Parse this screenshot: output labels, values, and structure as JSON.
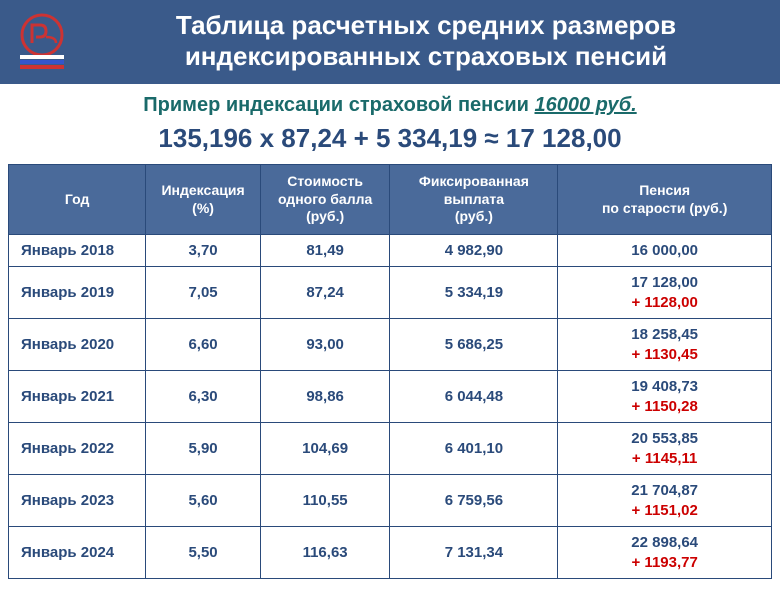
{
  "header": {
    "title_line1": "Таблица расчетных средних размеров",
    "title_line2": "индексированных страховых пенсий"
  },
  "subtitle": {
    "prefix": "Пример индексации страховой пенсии ",
    "amount": "16000 руб."
  },
  "formula": "135,196 х 87,24 + 5 334,19 ≈ 17 128,00",
  "table": {
    "columns": {
      "year": "Год",
      "index": "Индексация\n(%)",
      "point": "Стоимость\nодного балла\n(руб.)",
      "fixed": "Фиксированная\nвыплата\n(руб.)",
      "pension": "Пенсия\nпо старости (руб.)"
    },
    "rows": [
      {
        "year": "Январь 2018",
        "index": "3,70",
        "point": "81,49",
        "fixed": "4 982,90",
        "pension": "16 000,00",
        "delta": ""
      },
      {
        "year": "Январь 2019",
        "index": "7,05",
        "point": "87,24",
        "fixed": "5 334,19",
        "pension": "17 128,00",
        "delta": "+ 1128,00"
      },
      {
        "year": "Январь 2020",
        "index": "6,60",
        "point": "93,00",
        "fixed": "5 686,25",
        "pension": "18 258,45",
        "delta": "+ 1130,45"
      },
      {
        "year": "Январь 2021",
        "index": "6,30",
        "point": "98,86",
        "fixed": "6 044,48",
        "pension": "19 408,73",
        "delta": "+ 1150,28"
      },
      {
        "year": "Январь 2022",
        "index": "5,90",
        "point": "104,69",
        "fixed": "6 401,10",
        "pension": "20 553,85",
        "delta": "+ 1145,11"
      },
      {
        "year": "Январь 2023",
        "index": "5,60",
        "point": "110,55",
        "fixed": "6 759,56",
        "pension": "21 704,87",
        "delta": "+ 1151,02"
      },
      {
        "year": "Январь 2024",
        "index": "5,50",
        "point": "116,63",
        "fixed": "7 131,34",
        "pension": "22 898,64",
        "delta": "+ 1193,77"
      }
    ]
  },
  "colors": {
    "header_bg": "#3a5a8a",
    "th_bg": "#4a6a9a",
    "border": "#2a4a7a",
    "text": "#2a4a7a",
    "subtitle": "#1a6a6a",
    "delta": "#cc0000"
  }
}
